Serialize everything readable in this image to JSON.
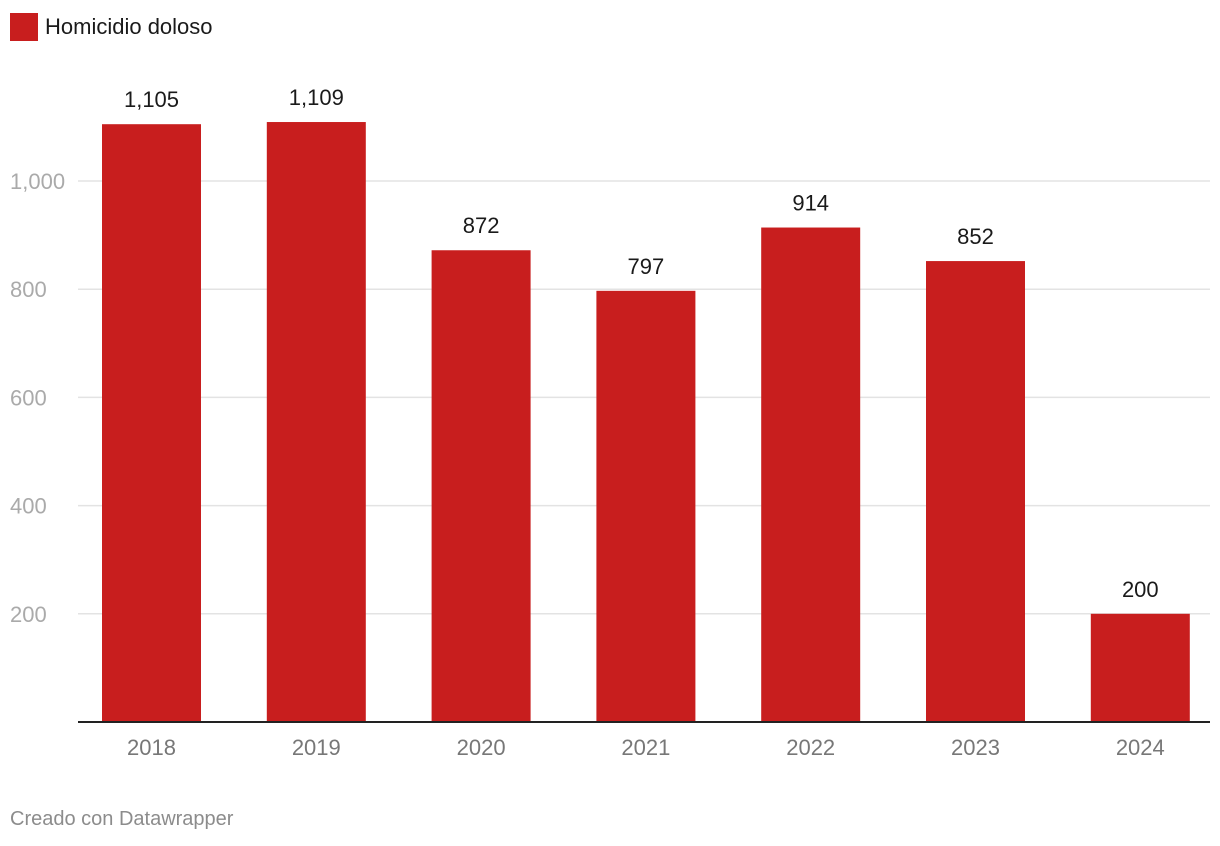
{
  "legend": {
    "label": "Homicidio doloso",
    "color": "#c81e1e"
  },
  "footer": {
    "text": "Creado con Datawrapper"
  },
  "chart_data": {
    "type": "bar",
    "categories": [
      "2018",
      "2019",
      "2020",
      "2021",
      "2022",
      "2023",
      "2024"
    ],
    "series": [
      {
        "name": "Homicidio doloso",
        "values": [
          1105,
          1109,
          872,
          797,
          914,
          852,
          200
        ],
        "value_labels": [
          "1,105",
          "1,109",
          "872",
          "797",
          "914",
          "852",
          "200"
        ],
        "color": "#c81e1e"
      }
    ],
    "yticks": [
      200,
      400,
      600,
      800,
      1000
    ],
    "ytick_labels": [
      "200",
      "400",
      "600",
      "800",
      "1,000"
    ],
    "ylim": [
      0,
      1200
    ],
    "grid": true,
    "title": "",
    "xlabel": "",
    "ylabel": "",
    "legend_position": "top-left"
  }
}
